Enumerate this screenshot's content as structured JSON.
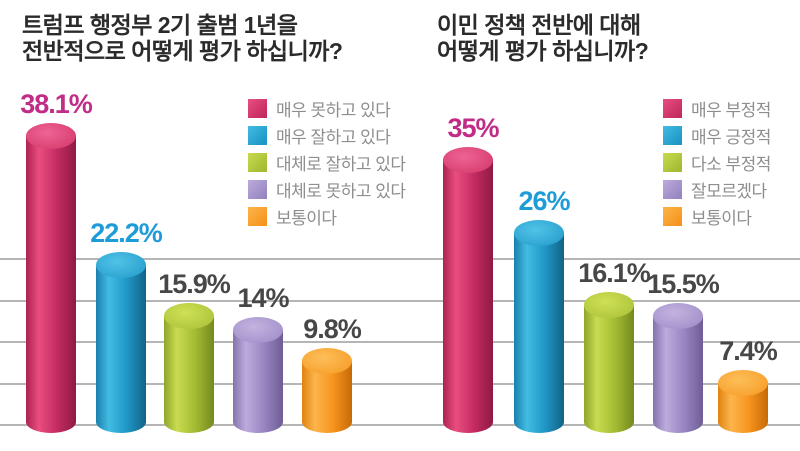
{
  "palette": {
    "background": "#FFFFFF",
    "title_text": "#2B2B2B",
    "gridline": "#B5B5B5",
    "legend_text": "#8E8E8E",
    "value_label_colors": {
      "pink": "#C02C86",
      "blue": "#1E9CD8",
      "gray": "#474747"
    },
    "series_colors": {
      "pink": {
        "edge": "#AD2152",
        "highlight": "#EA4E80",
        "mid": "#C42B61",
        "edge2": "#8E1A44",
        "top1": "#EF6395",
        "top2": "#D23868"
      },
      "blue": {
        "edge": "#1B7FAD",
        "highlight": "#41BCE3",
        "mid": "#1F97C6",
        "edge2": "#136286",
        "top1": "#52C3E8",
        "top2": "#219BC9"
      },
      "green": {
        "edge": "#8FA62C",
        "highlight": "#C9DB4F",
        "mid": "#A3BC33",
        "edge2": "#74891F",
        "top1": "#CFE055",
        "top2": "#A9C038"
      },
      "purple": {
        "edge": "#8573AE",
        "highlight": "#BCABDC",
        "mid": "#9886C2",
        "edge2": "#6F5D96",
        "top1": "#C3B3E0",
        "top2": "#9D8BC6"
      },
      "orange": {
        "edge": "#E08212",
        "highlight": "#FCB54B",
        "mid": "#F7941E",
        "edge2": "#C66A06",
        "top1": "#FCBF59",
        "top2": "#F79A24"
      }
    }
  },
  "charts": [
    {
      "title_lines": [
        "트럼프 행정부 2기  출범 1년을",
        "전반적으로 어떻게 평가 하십니까?"
      ],
      "legend": [
        {
          "label": "매우 못하고 있다",
          "color": "pink"
        },
        {
          "label": "매우 잘하고 있다",
          "color": "blue"
        },
        {
          "label": "대체로 잘하고 있다",
          "color": "green"
        },
        {
          "label": "대체로 못하고 있다",
          "color": "purple"
        },
        {
          "label": "보통이다",
          "color": "orange"
        }
      ],
      "bars": [
        {
          "label": "38.1%",
          "value": 38.1,
          "series": "매우 못하고 있다",
          "color": "pink",
          "label_color": "pink"
        },
        {
          "label": "22.2%",
          "value": 22.2,
          "series": "매우 잘하고 있다",
          "color": "blue",
          "label_color": "blue"
        },
        {
          "label": "15.9%",
          "value": 15.9,
          "series": "대체로 잘하고 있다",
          "color": "green",
          "label_color": "gray"
        },
        {
          "label": "14%",
          "value": 14,
          "series": "대체로 못하고 있다",
          "color": "purple",
          "label_color": "gray"
        },
        {
          "label": "9.8%",
          "value": 9.8,
          "series": "보통이다",
          "color": "orange",
          "label_color": "gray"
        }
      ]
    },
    {
      "title_lines": [
        "이민 정책 전반에 대해",
        "어떻게 평가 하십니까?"
      ],
      "legend": [
        {
          "label": "매우 부정적",
          "color": "pink"
        },
        {
          "label": "매우 긍정적",
          "color": "blue"
        },
        {
          "label": "다소 부정적",
          "color": "green"
        },
        {
          "label": "잘모르겠다",
          "color": "purple"
        },
        {
          "label": "보통이다",
          "color": "orange"
        }
      ],
      "bars": [
        {
          "label": "35%",
          "value": 35,
          "series": "매우 부정적",
          "color": "pink",
          "label_color": "pink"
        },
        {
          "label": "26%",
          "value": 26,
          "series": "매우 긍정적",
          "color": "blue",
          "label_color": "blue"
        },
        {
          "label": "16.1%",
          "value": 16.1,
          "series": "다소 부정적",
          "color": "green",
          "label_color": "gray"
        },
        {
          "label": "15.5%",
          "value": 15.5,
          "series": "잘모르겠다",
          "color": "purple",
          "label_color": "gray"
        },
        {
          "label": "7.4%",
          "value": 7.4,
          "series": "보통이다",
          "color": "orange",
          "label_color": "gray"
        }
      ]
    }
  ],
  "chart_data": [
    {
      "type": "bar",
      "title": "트럼프 행정부 2기 출범 1년을 전반적으로 어떻게 평가 하십니까?",
      "categories": [
        "매우 못하고 있다",
        "매우 잘하고 있다",
        "대체로 잘하고 있다",
        "대체로 못하고 있다",
        "보통이다"
      ],
      "values": [
        38.1,
        22.2,
        15.9,
        14,
        9.8
      ],
      "value_labels": [
        "38.1%",
        "22.2%",
        "15.9%",
        "14%",
        "9.8%"
      ],
      "xlabel": "",
      "ylabel": "",
      "ylim": [
        0,
        40
      ],
      "grid": "horizontal",
      "legend_position": "top-right",
      "bar_style": "3d-cylinder"
    },
    {
      "type": "bar",
      "title": "이민 정책 전반에 대해 어떻게 평가 하십니까?",
      "categories": [
        "매우 부정적",
        "매우 긍정적",
        "다소 부정적",
        "잘모르겠다",
        "보통이다"
      ],
      "values": [
        35,
        26,
        16.1,
        15.5,
        7.4
      ],
      "value_labels": [
        "35%",
        "26%",
        "16.1%",
        "15.5%",
        "7.4%"
      ],
      "xlabel": "",
      "ylabel": "",
      "ylim": [
        0,
        40
      ],
      "grid": "horizontal",
      "legend_position": "top-right",
      "bar_style": "3d-cylinder"
    }
  ]
}
